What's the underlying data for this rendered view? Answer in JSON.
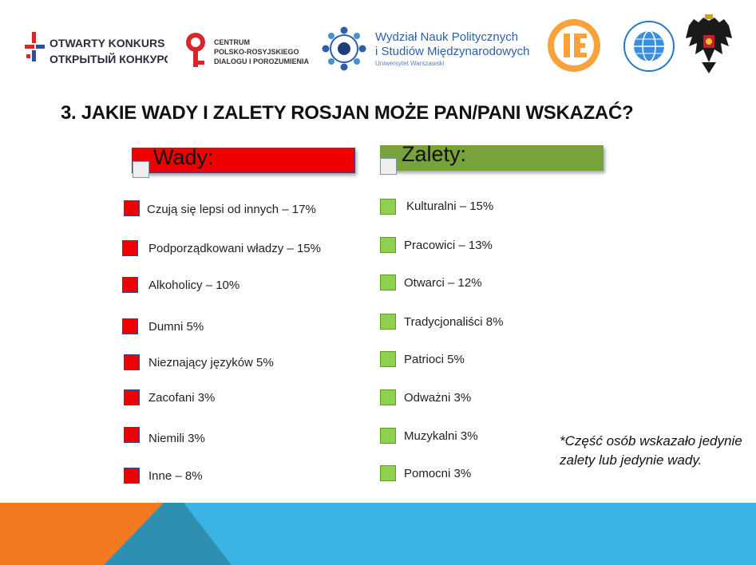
{
  "logos": {
    "otwarty_line1": "OTWARTY KONKURS",
    "otwarty_line2": "ОТКРЫТЫЙ КОНКУРС",
    "centrum_line1": "CENTRUM",
    "centrum_line2": "POLSKO-ROSYJSKIEGO",
    "centrum_line3": "DIALOGU I POROZUMIENIA",
    "wydzial_line1": "Wydział Nauk Politycznych",
    "wydzial_line2": "i Studiów Międzynarodowych",
    "wydzial_line3": "Uniwersytet Warszawski"
  },
  "title": "3. JAKIE WADY I ZALETY ROSJAN MOŻE PAN/PANI WSKAZAĆ?",
  "wady": {
    "header": "Wady:",
    "color": "#ee0000",
    "items": [
      "Czują się lepsi od innych – 17%",
      "Podporządkowani władzy – 15%",
      "Alkoholicy – 10%",
      "Dumni 5%",
      "Nieznający języków 5%",
      "Zacofani 3%",
      "Niemili 3%",
      "Inne – 8%"
    ]
  },
  "zalety": {
    "header": "Zalety:",
    "color": "#77a33a",
    "items": [
      "Kulturalni – 15%",
      "Pracowici – 13%",
      "Otwarci – 12%",
      "Tradycjonaliści 8%",
      "Patrioci 5%",
      "Odważni 3%",
      "Muzykalni 3%",
      "Pomocni 3%"
    ]
  },
  "note": "*Część osób wskazało jedynie zalety lub jedynie wady.",
  "colors": {
    "footer_blue": "#3ab4e4",
    "footer_orange": "#f47a20",
    "footer_teal": "#2f8fb0"
  }
}
